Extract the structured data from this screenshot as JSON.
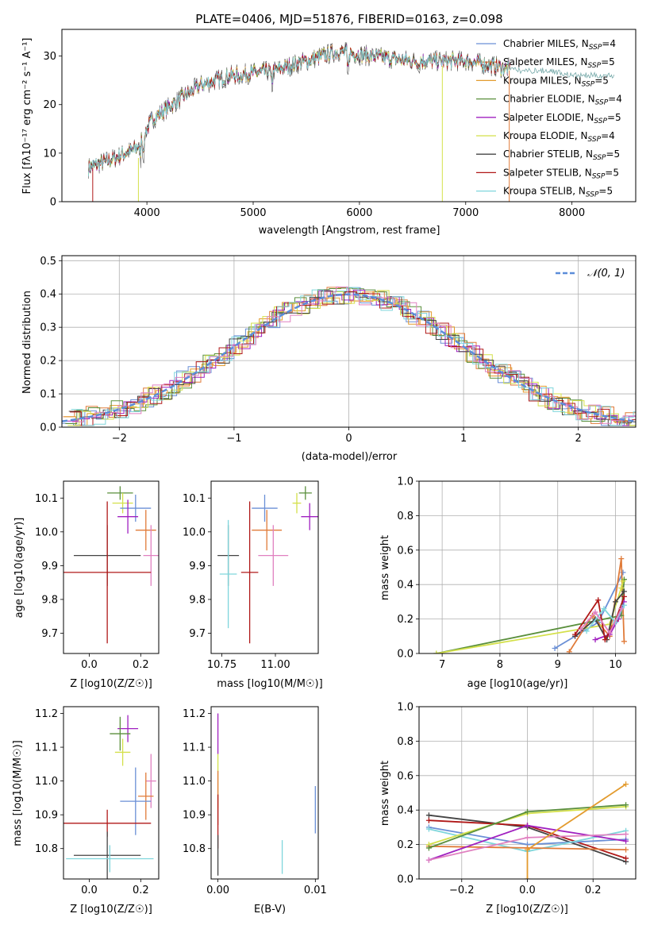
{
  "title": "PLATE=0406, MJD=51876, FIBERID=0163, z=0.098",
  "colors": {
    "chabrier_miles": "#6a8fd6",
    "salpeter_miles": "#e07b39",
    "kroupa_miles": "#e39b2e",
    "chabrier_elodie": "#5a8f3c",
    "salpeter_elodie": "#a020c0",
    "kroupa_elodie": "#d4e04a",
    "chabrier_stelib": "#444444",
    "salpeter_stelib": "#b01818",
    "kroupa_stelib": "#7fd6dc",
    "pink": "#e080c0",
    "normal_curve": "#5b8dd9"
  },
  "chart_data": [
    {
      "id": "spectrum",
      "type": "line",
      "xlabel": "wavelength [Angstrom, rest frame]",
      "ylabel": "Flux [fλ10⁻¹⁷ erg cm⁻² s⁻¹ A⁻¹]",
      "xlim": [
        3200,
        8600
      ],
      "ylim": [
        0,
        35.5
      ],
      "xticks": [
        "4000",
        "5000",
        "6000",
        "7000",
        "8000"
      ],
      "yticks": [
        "0",
        "10",
        "20",
        "30"
      ],
      "continuum_knots": [
        [
          3450,
          7
        ],
        [
          3700,
          9
        ],
        [
          3900,
          11
        ],
        [
          4050,
          17
        ],
        [
          4300,
          21
        ],
        [
          4500,
          24
        ],
        [
          4800,
          26
        ],
        [
          5200,
          27
        ],
        [
          5500,
          29
        ],
        [
          5800,
          31
        ],
        [
          6100,
          30
        ],
        [
          6500,
          29
        ],
        [
          7000,
          29
        ],
        [
          7500,
          27
        ],
        [
          7800,
          27
        ],
        [
          8000,
          26
        ],
        [
          8300,
          26
        ]
      ],
      "legend": [
        "Chabrier MILES, N_SSP=4",
        "Salpeter MILES, N_SSP=5",
        "Kroupa MILES, N_SSP=5",
        "Chabrier ELODIE, N_SSP=4",
        "Salpeter ELODIE, N_SSP=5",
        "Kroupa ELODIE, N_SSP=4",
        "Chabrier STELIB, N_SSP=5",
        "Salpeter STELIB, N_SSP=5",
        "Kroupa STELIB, N_SSP=5"
      ]
    },
    {
      "id": "residuals",
      "type": "line",
      "xlabel": "(data-model)/error",
      "ylabel": "Normed distribution",
      "xlim": [
        -2.5,
        2.5
      ],
      "ylim": [
        0,
        0.515
      ],
      "xticks": [
        "−2",
        "−1",
        "0",
        "1",
        "2"
      ],
      "yticks": [
        "0.0",
        "0.1",
        "0.2",
        "0.3",
        "0.4",
        "0.5"
      ],
      "legend": "𝒩(0, 1)",
      "grid": true
    },
    {
      "id": "age_vs_Z",
      "type": "scatter",
      "xlabel": "Z [log10(Z/Z☉)]",
      "ylabel": "age  [log10(age/yr)]",
      "xlim": [
        -0.1,
        0.27
      ],
      "ylim": [
        9.64,
        10.15
      ],
      "xticks": [
        "0.0",
        "0.2"
      ],
      "yticks": [
        "9.7",
        "9.8",
        "9.9",
        "10.0",
        "10.1"
      ],
      "points": [
        {
          "x": 0.12,
          "y": 10.115,
          "xe": 0.05,
          "ye": 0.02,
          "c": "chabrier_elodie"
        },
        {
          "x": 0.13,
          "y": 10.085,
          "xe": 0.04,
          "ye": 0.03,
          "c": "kroupa_elodie"
        },
        {
          "x": 0.18,
          "y": 10.07,
          "xe": 0.06,
          "ye": 0.04,
          "c": "chabrier_miles"
        },
        {
          "x": 0.15,
          "y": 10.045,
          "xe": 0.04,
          "ye": 0.05,
          "c": "salpeter_elodie"
        },
        {
          "x": 0.22,
          "y": 10.005,
          "xe": 0.04,
          "ye": 0.06,
          "c": "salpeter_miles"
        },
        {
          "x": 0.24,
          "y": 9.93,
          "xe": 0.03,
          "ye": 0.09,
          "c": "pink"
        },
        {
          "x": 0.07,
          "y": 9.93,
          "xe": 0.13,
          "ye": 0.09,
          "c": "chabrier_stelib"
        },
        {
          "x": 0.07,
          "y": 9.88,
          "xe": 0.17,
          "ye": 0.21,
          "c": "salpeter_stelib"
        }
      ]
    },
    {
      "id": "age_vs_mass",
      "type": "scatter",
      "xlabel": "mass [log10(M/M☉)]",
      "ylabel": "",
      "xlim": [
        10.7,
        11.2
      ],
      "ylim": [
        9.64,
        10.15
      ],
      "xticks": [
        "10.75",
        "11.00"
      ],
      "yticks": [
        "9.7",
        "9.8",
        "9.9",
        "10.0",
        "10.1"
      ],
      "points": [
        {
          "x": 11.14,
          "y": 10.115,
          "xe": 0.03,
          "ye": 0.02,
          "c": "chabrier_elodie"
        },
        {
          "x": 11.1,
          "y": 10.085,
          "xe": 0.02,
          "ye": 0.03,
          "c": "kroupa_elodie"
        },
        {
          "x": 10.95,
          "y": 10.07,
          "xe": 0.06,
          "ye": 0.04,
          "c": "chabrier_miles"
        },
        {
          "x": 11.16,
          "y": 10.045,
          "xe": 0.04,
          "ye": 0.04,
          "c": "salpeter_elodie"
        },
        {
          "x": 10.96,
          "y": 10.005,
          "xe": 0.07,
          "ye": 0.06,
          "c": "salpeter_miles"
        },
        {
          "x": 10.99,
          "y": 9.93,
          "xe": 0.07,
          "ye": 0.09,
          "c": "pink"
        },
        {
          "x": 10.78,
          "y": 9.93,
          "xe": 0.05,
          "ye": 0.09,
          "c": "chabrier_stelib"
        },
        {
          "x": 10.78,
          "y": 9.875,
          "xe": 0.04,
          "ye": 0.16,
          "c": "kroupa_stelib"
        },
        {
          "x": 10.88,
          "y": 9.88,
          "xe": 0.04,
          "ye": 0.21,
          "c": "salpeter_stelib"
        }
      ]
    },
    {
      "id": "weight_vs_age",
      "type": "line",
      "xlabel": "age  [log10(age/yr)]",
      "ylabel": "mass weight",
      "xlim": [
        6.6,
        10.35
      ],
      "ylim": [
        0,
        1.0
      ],
      "xticks": [
        "7",
        "8",
        "9",
        "10"
      ],
      "yticks": [
        "0.0",
        "0.2",
        "0.4",
        "0.6",
        "0.8",
        "1.0"
      ],
      "grid": true,
      "series": [
        {
          "c": "chabrier_miles",
          "x": [
            8.95,
            9.7,
            10.13
          ],
          "y": [
            0.03,
            0.18,
            0.47
          ]
        },
        {
          "c": "salpeter_miles",
          "x": [
            9.2,
            9.6,
            9.9,
            10.1,
            10.15
          ],
          "y": [
            0.01,
            0.22,
            0.1,
            0.55,
            0.07
          ]
        },
        {
          "c": "chabrier_elodie",
          "x": [
            6.9,
            10.1,
            10.15
          ],
          "y": [
            0.0,
            0.22,
            0.43
          ]
        },
        {
          "c": "salpeter_elodie",
          "x": [
            9.65,
            9.9,
            10.05,
            10.15
          ],
          "y": [
            0.08,
            0.11,
            0.2,
            0.3
          ]
        },
        {
          "c": "kroupa_elodie",
          "x": [
            6.9,
            9.9,
            10.1,
            10.13
          ],
          "y": [
            0.0,
            0.17,
            0.38,
            0.42
          ]
        },
        {
          "c": "chabrier_stelib",
          "x": [
            9.3,
            9.65,
            9.85,
            10.0,
            10.15
          ],
          "y": [
            0.1,
            0.2,
            0.08,
            0.3,
            0.36
          ]
        },
        {
          "c": "salpeter_stelib",
          "x": [
            9.3,
            9.7,
            9.82,
            10.0,
            10.15
          ],
          "y": [
            0.11,
            0.31,
            0.08,
            0.19,
            0.33
          ]
        },
        {
          "c": "kroupa_stelib",
          "x": [
            9.5,
            9.8,
            10.0,
            10.15
          ],
          "y": [
            0.13,
            0.26,
            0.18,
            0.28
          ]
        },
        {
          "c": "pink",
          "x": [
            9.4,
            9.65,
            9.9,
            10.1
          ],
          "y": [
            0.14,
            0.24,
            0.12,
            0.26
          ]
        }
      ]
    },
    {
      "id": "mass_vs_Z",
      "type": "scatter",
      "xlabel": "Z [log10(Z/Z☉)]",
      "ylabel": "mass [log10(M/M☉)]",
      "xlim": [
        -0.1,
        0.27
      ],
      "ylim": [
        10.71,
        11.22
      ],
      "xticks": [
        "0.0",
        "0.2"
      ],
      "yticks": [
        "10.8",
        "10.9",
        "11.0",
        "11.1",
        "11.2"
      ],
      "points": [
        {
          "x": 0.15,
          "y": 11.155,
          "xe": 0.04,
          "ye": 0.04,
          "c": "salpeter_elodie"
        },
        {
          "x": 0.12,
          "y": 11.14,
          "xe": 0.04,
          "ye": 0.05,
          "c": "chabrier_elodie"
        },
        {
          "x": 0.13,
          "y": 11.085,
          "xe": 0.03,
          "ye": 0.04,
          "c": "kroupa_elodie"
        },
        {
          "x": 0.24,
          "y": 11.0,
          "xe": 0.02,
          "ye": 0.08,
          "c": "pink"
        },
        {
          "x": 0.22,
          "y": 10.955,
          "xe": 0.03,
          "ye": 0.07,
          "c": "salpeter_miles"
        },
        {
          "x": 0.18,
          "y": 10.94,
          "xe": 0.06,
          "ye": 0.1,
          "c": "chabrier_miles"
        },
        {
          "x": 0.07,
          "y": 10.875,
          "xe": 0.17,
          "ye": 0.04,
          "c": "salpeter_stelib"
        },
        {
          "x": 0.07,
          "y": 10.78,
          "xe": 0.13,
          "ye": 0.07,
          "c": "chabrier_stelib"
        },
        {
          "x": 0.08,
          "y": 10.77,
          "xe": 0.17,
          "ye": 0.04,
          "c": "kroupa_stelib"
        }
      ]
    },
    {
      "id": "mass_vs_ebv",
      "type": "scatter",
      "xlabel": "E(B-V)",
      "ylabel": "",
      "xlim": [
        -0.0007,
        0.0103
      ],
      "ylim": [
        10.71,
        11.22
      ],
      "xticks": [
        "0.00",
        "0.01"
      ],
      "yticks": [
        "10.8",
        "10.9",
        "11.0",
        "11.1",
        "11.2"
      ],
      "points": [
        {
          "x": 0.0,
          "y": 11.14,
          "xe": 0.0,
          "ye": 0.06,
          "c": "salpeter_elodie"
        },
        {
          "x": 0.0,
          "y": 11.0,
          "xe": 0.0,
          "ye": 0.08,
          "c": "kroupa_elodie"
        },
        {
          "x": 0.0,
          "y": 10.95,
          "xe": 0.0,
          "ye": 0.08,
          "c": "salpeter_miles"
        },
        {
          "x": 0.0,
          "y": 10.88,
          "xe": 0.0,
          "ye": 0.08,
          "c": "salpeter_stelib"
        },
        {
          "x": 0.0,
          "y": 10.78,
          "xe": 0.0,
          "ye": 0.06,
          "c": "chabrier_stelib"
        },
        {
          "x": 0.0066,
          "y": 10.775,
          "xe": 0.0,
          "ye": 0.05,
          "c": "kroupa_stelib"
        },
        {
          "x": 0.01,
          "y": 10.915,
          "xe": 0.0,
          "ye": 0.07,
          "c": "chabrier_miles"
        }
      ]
    },
    {
      "id": "weight_vs_Z",
      "type": "line",
      "xlabel": "Z [log10(Z/Z☉)]",
      "ylabel": "mass weight",
      "xlim": [
        -0.33,
        0.33
      ],
      "ylim": [
        0,
        1.0
      ],
      "xticks": [
        "−0.2",
        "0.0",
        "0.2"
      ],
      "yticks": [
        "0.0",
        "0.2",
        "0.4",
        "0.6",
        "0.8",
        "1.0"
      ],
      "grid": true,
      "series": [
        {
          "c": "chabrier_stelib",
          "x": [
            -0.3,
            0.0,
            0.3
          ],
          "y": [
            0.37,
            0.3,
            0.1
          ]
        },
        {
          "c": "salpeter_stelib",
          "x": [
            -0.3,
            0.0,
            0.3
          ],
          "y": [
            0.34,
            0.31,
            0.12
          ]
        },
        {
          "c": "chabrier_miles",
          "x": [
            -0.3,
            0.0,
            0.3
          ],
          "y": [
            0.3,
            0.2,
            0.23
          ]
        },
        {
          "c": "kroupa_stelib",
          "x": [
            -0.3,
            0.0,
            0.3
          ],
          "y": [
            0.29,
            0.16,
            0.28
          ]
        },
        {
          "c": "salpeter_miles",
          "x": [
            -0.3,
            0.0,
            0.3
          ],
          "y": [
            0.19,
            0.18,
            0.17
          ]
        },
        {
          "c": "kroupa_elodie",
          "x": [
            -0.3,
            0.0,
            0.3
          ],
          "y": [
            0.2,
            0.38,
            0.42
          ]
        },
        {
          "c": "chabrier_elodie",
          "x": [
            -0.3,
            0.0,
            0.3
          ],
          "y": [
            0.18,
            0.39,
            0.43
          ]
        },
        {
          "c": "salpeter_elodie",
          "x": [
            -0.3,
            0.0,
            0.3
          ],
          "y": [
            0.11,
            0.31,
            0.22
          ]
        },
        {
          "c": "pink",
          "x": [
            -0.3,
            0.0,
            0.3
          ],
          "y": [
            0.11,
            0.24,
            0.26
          ]
        },
        {
          "c": "kroupa_miles",
          "x": [
            0.0,
            0.0,
            0.3
          ],
          "y": [
            0.0,
            0.17,
            0.55
          ]
        }
      ]
    }
  ]
}
